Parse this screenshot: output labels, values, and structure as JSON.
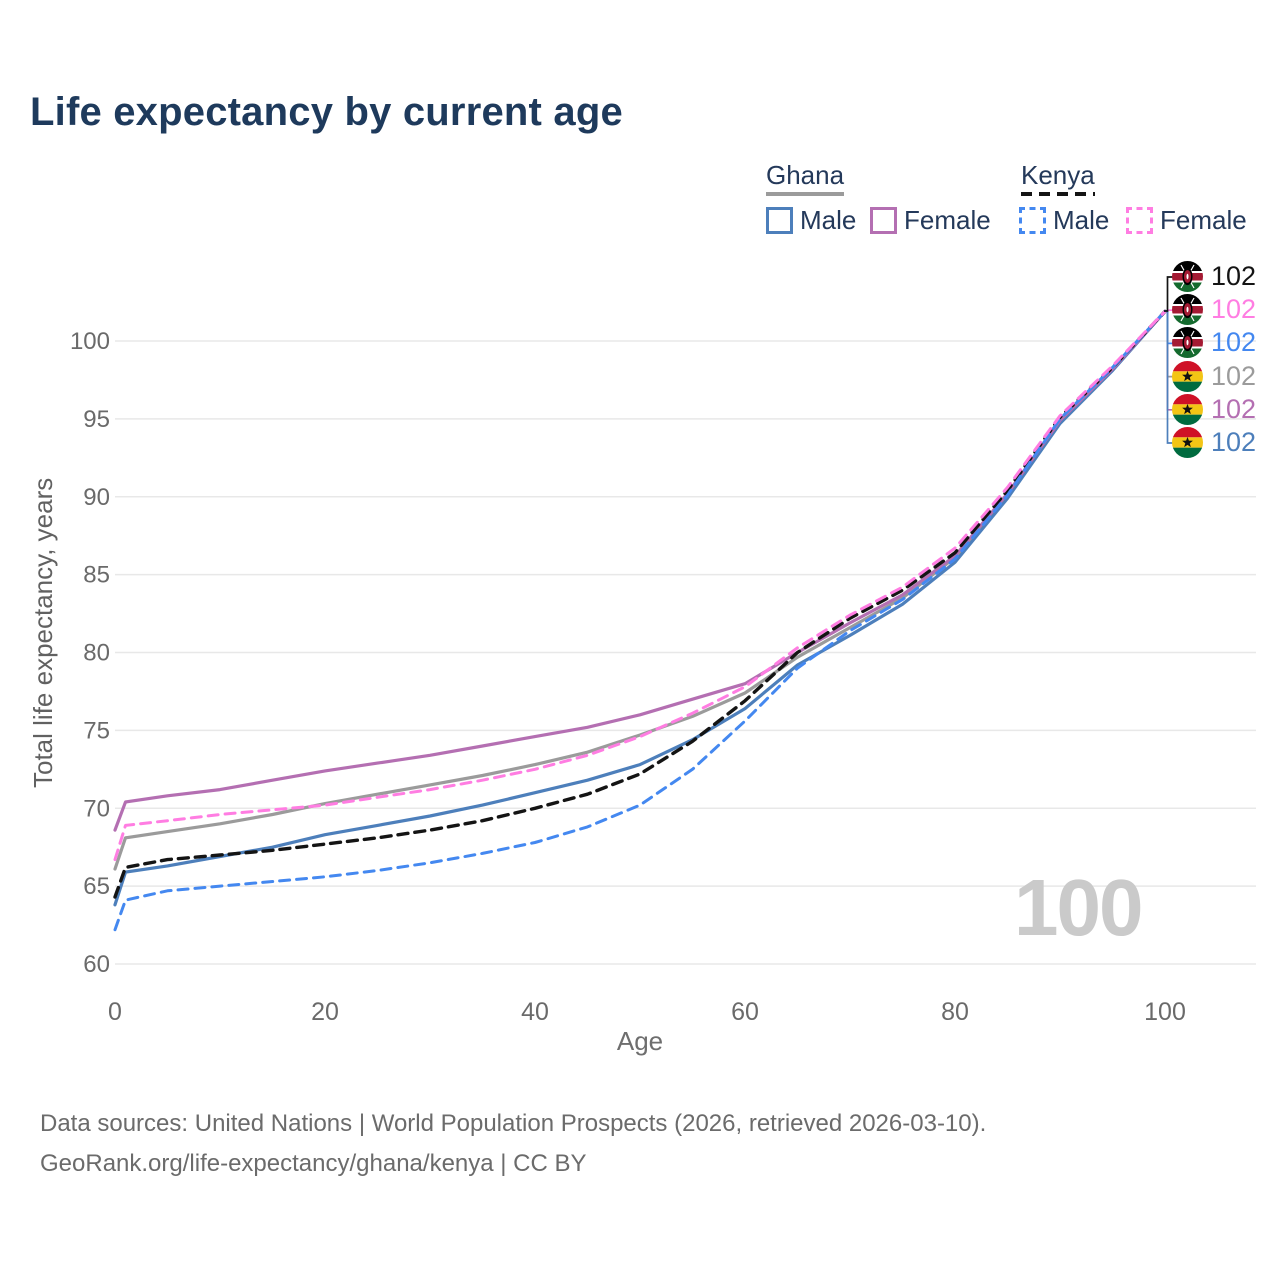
{
  "title": "Life expectancy by current age",
  "legend": {
    "groups": [
      {
        "label": "Ghana",
        "line_color": "#9b9b9b",
        "line_style": "solid",
        "items": [
          {
            "label": "Male",
            "color": "#4d7fbb",
            "style": "solid"
          },
          {
            "label": "Female",
            "color": "#b46fb2",
            "style": "solid"
          }
        ]
      },
      {
        "label": "Kenya",
        "line_color": "#141414",
        "line_style": "dashed",
        "items": [
          {
            "label": "Male",
            "color": "#4488f0",
            "style": "dashed"
          },
          {
            "label": "Female",
            "color": "#ff7de2",
            "style": "dashed"
          }
        ]
      }
    ]
  },
  "chart_data": {
    "type": "line",
    "title": "Life expectancy by current age",
    "xlabel": "Age",
    "ylabel": "Total life expectancy, years",
    "xlim": [
      0,
      100
    ],
    "ylim": [
      60,
      102
    ],
    "x_ticks": [
      0,
      20,
      40,
      60,
      80,
      100
    ],
    "y_ticks": [
      60,
      65,
      70,
      75,
      80,
      85,
      90,
      95,
      100
    ],
    "grid": true,
    "legend_position": "top-right",
    "x": [
      0,
      1,
      5,
      10,
      15,
      20,
      25,
      30,
      35,
      40,
      45,
      50,
      55,
      60,
      65,
      70,
      75,
      80,
      85,
      90,
      95,
      100
    ],
    "series": [
      {
        "name": "Ghana Overall",
        "country": "Ghana",
        "sex": "Overall",
        "color": "#9b9b9b",
        "dashed": false,
        "values": [
          66.1,
          68.1,
          68.5,
          69.0,
          69.6,
          70.3,
          70.9,
          71.5,
          72.1,
          72.8,
          73.6,
          74.7,
          75.9,
          77.4,
          79.7,
          81.6,
          83.5,
          86.1,
          90.1,
          94.8,
          98.2,
          101.9
        ]
      },
      {
        "name": "Ghana Male",
        "country": "Ghana",
        "sex": "Male",
        "color": "#4d7fbb",
        "dashed": false,
        "values": [
          63.8,
          65.9,
          66.3,
          66.9,
          67.5,
          68.3,
          68.9,
          69.5,
          70.2,
          71.0,
          71.8,
          72.8,
          74.4,
          76.4,
          79.2,
          81.1,
          83.1,
          85.8,
          89.9,
          94.7,
          98.1,
          101.9
        ]
      },
      {
        "name": "Ghana Female",
        "country": "Ghana",
        "sex": "Female",
        "color": "#b46fb2",
        "dashed": false,
        "values": [
          68.6,
          70.4,
          70.8,
          71.2,
          71.8,
          72.4,
          72.9,
          73.4,
          74.0,
          74.6,
          75.2,
          76.0,
          77.0,
          78.0,
          80.0,
          81.9,
          83.7,
          86.2,
          90.2,
          94.9,
          98.2,
          101.9
        ]
      },
      {
        "name": "Kenya Overall",
        "country": "Kenya",
        "sex": "Overall",
        "color": "#141414",
        "dashed": true,
        "values": [
          64.3,
          66.2,
          66.7,
          67.0,
          67.3,
          67.7,
          68.1,
          68.6,
          69.2,
          70.0,
          70.9,
          72.2,
          74.3,
          76.9,
          80.0,
          82.2,
          84.0,
          86.4,
          90.4,
          95.1,
          98.3,
          101.9
        ]
      },
      {
        "name": "Kenya Male",
        "country": "Kenya",
        "sex": "Male",
        "color": "#4488f0",
        "dashed": true,
        "values": [
          62.2,
          64.1,
          64.7,
          65.0,
          65.3,
          65.6,
          66.0,
          66.5,
          67.1,
          67.8,
          68.8,
          70.2,
          72.5,
          75.6,
          79.0,
          81.4,
          83.4,
          86.0,
          90.1,
          95.0,
          98.3,
          101.9
        ]
      },
      {
        "name": "Kenya Female",
        "country": "Kenya",
        "sex": "Female",
        "color": "#ff7de2",
        "dashed": true,
        "values": [
          66.7,
          68.9,
          69.2,
          69.6,
          69.9,
          70.2,
          70.7,
          71.2,
          71.8,
          72.5,
          73.4,
          74.6,
          76.1,
          77.8,
          80.3,
          82.4,
          84.2,
          86.7,
          90.6,
          95.2,
          98.4,
          101.9
        ]
      }
    ]
  },
  "right_labels": [
    {
      "country": "Kenya",
      "series": "Overall",
      "flag": "kenya",
      "value": "102",
      "color": "#141414"
    },
    {
      "country": "Kenya",
      "series": "Female",
      "flag": "kenya",
      "value": "102",
      "color": "#ff7de2"
    },
    {
      "country": "Kenya",
      "series": "Male",
      "flag": "kenya",
      "value": "102",
      "color": "#4488f0"
    },
    {
      "country": "Ghana",
      "series": "Overall",
      "flag": "ghana",
      "value": "102",
      "color": "#9b9b9b"
    },
    {
      "country": "Ghana",
      "series": "Female",
      "flag": "ghana",
      "value": "102",
      "color": "#b46fb2"
    },
    {
      "country": "Ghana",
      "series": "Male",
      "flag": "ghana",
      "value": "102",
      "color": "#4d7fbb"
    }
  ],
  "watermark": "100",
  "axis": {
    "x_title": "Age",
    "y_title": "Total life expectancy, years"
  },
  "source": {
    "line1": "Data sources: United Nations | World Population Prospects (2026, retrieved 2026-03-10).",
    "line2": "GeoRank.org/life-expectancy/ghana/kenya | CC BY"
  },
  "colors": {
    "title": "#1e3a5c",
    "axis_text": "#6a6a6a",
    "gridline": "#e8e8e8",
    "watermark": "#cacaca",
    "source_text": "#6b6b6b"
  }
}
